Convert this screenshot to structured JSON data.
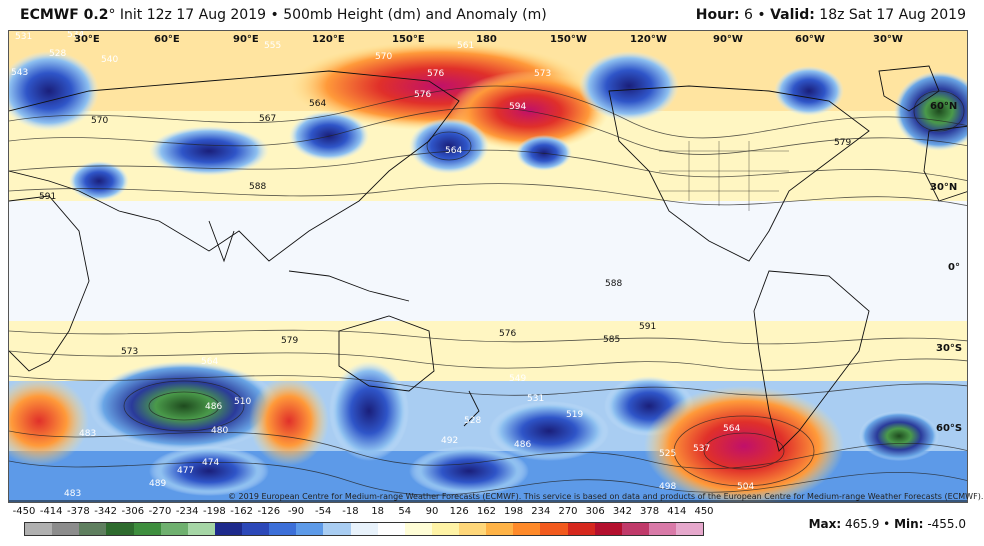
{
  "header": {
    "model": "ECMWF 0.2",
    "degree": "°",
    "description": "Init 12z 17 Aug 2019 • 500mb Height (dm) and Anomaly (m)",
    "hour_label": "Hour:",
    "hour_value": "6",
    "sep": "•",
    "valid_label": "Valid:",
    "valid_value": "18z Sat 17 Aug 2019"
  },
  "lon_labels": [
    "30°E",
    "60°E",
    "90°E",
    "120°E",
    "150°E",
    "180",
    "150°W",
    "120°W",
    "90°W",
    "60°W",
    "30°W"
  ],
  "lat_labels": [
    "60°N",
    "30°N",
    "0°",
    "30°S",
    "60°S"
  ],
  "contour_labels": [
    "531",
    "534",
    "528",
    "540",
    "543",
    "570",
    "555",
    "567",
    "570",
    "561",
    "564",
    "576",
    "573",
    "594",
    "579",
    "576",
    "564",
    "588",
    "591",
    "588",
    "585",
    "591",
    "579",
    "576",
    "573",
    "564",
    "486",
    "483",
    "480",
    "510",
    "519",
    "492",
    "486",
    "474",
    "477",
    "489",
    "483",
    "525",
    "537",
    "564",
    "528",
    "549",
    "531",
    "504",
    "498"
  ],
  "copyright": "© 2019 European Centre for Medium-range Weather Forecasts (ECMWF). This service is based on data and products of the European Centre for Medium-range Weather Forecasts (ECMWF).",
  "colorbar": {
    "labels": [
      "-450",
      "-414",
      "-378",
      "-342",
      "-306",
      "-270",
      "-234",
      "-198",
      "-162",
      "-126",
      "-90",
      "-54",
      "-18",
      "18",
      "54",
      "90",
      "126",
      "162",
      "198",
      "234",
      "270",
      "306",
      "342",
      "378",
      "414",
      "450"
    ],
    "colors": [
      "#b0b0b0",
      "#8c8c8c",
      "#5f7f5f",
      "#2e6b2e",
      "#3e8e3e",
      "#6fb06f",
      "#a6d6a6",
      "#1e2a8c",
      "#2c48b8",
      "#3c6fd8",
      "#5d9ae8",
      "#a9cdf2",
      "#e8f2fb",
      "#ffffff",
      "#fffdd6",
      "#fff3a6",
      "#ffd77a",
      "#ffb347",
      "#ff8a2a",
      "#f25a1e",
      "#d6281e",
      "#b4102e",
      "#c03a6a",
      "#d97aa8",
      "#e6a8cc"
    ]
  },
  "stats": {
    "max_label": "Max:",
    "max_value": "465.9",
    "min_label": "Min:",
    "min_value": "-455.0"
  }
}
